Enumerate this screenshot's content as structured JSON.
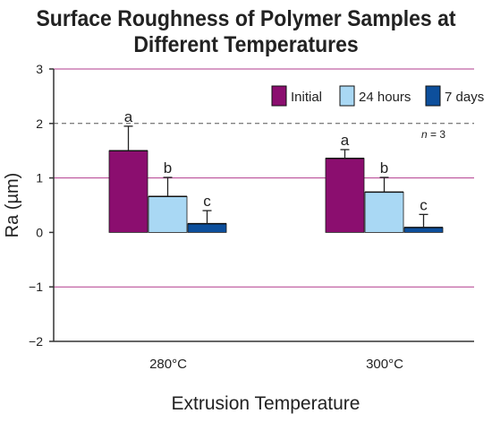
{
  "chart_data": {
    "type": "bar",
    "title_line1": "Surface Roughness of Polymer Samples at",
    "title_line2": "Different Temperatures",
    "xlabel": "Extrusion Temperature",
    "ylabel": "Ra (µm)",
    "ylim": [
      -2,
      3
    ],
    "yticks": [
      {
        "value": 3,
        "label": "3"
      },
      {
        "value": 2,
        "label": "2"
      },
      {
        "value": 1,
        "label": "1"
      },
      {
        "value": 0,
        "label": "0"
      },
      {
        "value": -1,
        "label": "−1"
      },
      {
        "value": -2,
        "label": "−2"
      }
    ],
    "categories": [
      "280°C",
      "300°C"
    ],
    "series": [
      {
        "name": "Initial",
        "color": "#8B0E6F",
        "values": [
          1.5,
          1.36
        ],
        "errors": [
          0.45,
          0.16
        ],
        "letters": [
          "a",
          "a"
        ]
      },
      {
        "name": "24 hours",
        "color": "#A9D8F4",
        "values": [
          0.66,
          0.74
        ],
        "errors": [
          0.35,
          0.27
        ],
        "letters": [
          "b",
          "b"
        ]
      },
      {
        "name": "7 days",
        "color": "#0D4F9C",
        "values": [
          0.16,
          0.09
        ],
        "errors": [
          0.24,
          0.24
        ],
        "letters": [
          "c",
          "c"
        ]
      }
    ],
    "annotation": {
      "italic": "n",
      "rest": " = 3"
    },
    "grid": "horizontal dashed at 2, solid at -1, 1, 3",
    "legend_position": "top-right"
  }
}
